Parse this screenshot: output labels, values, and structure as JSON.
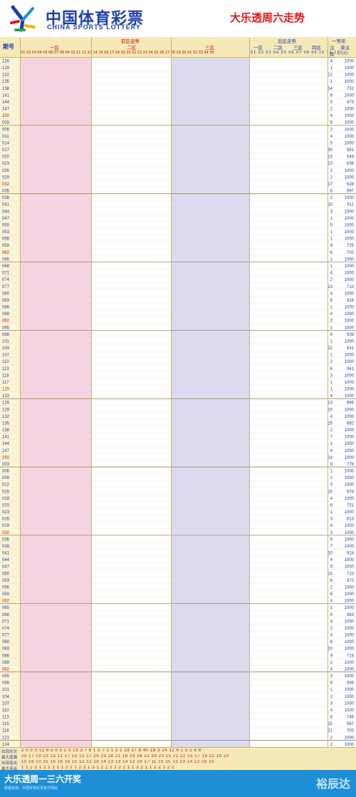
{
  "brand": {
    "cn": "中国体育彩票",
    "en": "CHINA SPORTS LOTTERY",
    "logo_icon": "china-sports-lottery-logo"
  },
  "title": "大乐透周六走势",
  "header": {
    "period_label": "期号",
    "front_zone": "前区走势",
    "back_zone": "后区走势",
    "first_prize": "一等奖",
    "front_sub": [
      "一区",
      "二区",
      "三区"
    ],
    "back_sub": [
      "一区",
      "二区",
      "三区",
      "四区"
    ],
    "notes_label": "注",
    "notes_label2": "数",
    "unit_label": "单注",
    "unit_label2": "(万元)",
    "front_numbers": "01 02 03 04 05 06 07 08 09 10 11 12 13 14 15 16 17 18 19 20 21 22 23 24 25 26 27 28 29 30 31 32 33 34 35",
    "back_numbers": "01 02 03 04 05 06 07 08 09 10 11 12"
  },
  "draws": [
    {
      "period": "126",
      "notes": "4",
      "prize": "1000"
    },
    {
      "period": "129",
      "notes": "1",
      "prize": "1000"
    },
    {
      "period": "132",
      "notes": "12",
      "prize": "1000"
    },
    {
      "period": "135",
      "notes": "1",
      "prize": "1000"
    },
    {
      "period": "138",
      "notes": "14",
      "prize": "732"
    },
    {
      "period": "141",
      "notes": "8",
      "prize": "1000"
    },
    {
      "period": "144",
      "notes": "5",
      "prize": "973"
    },
    {
      "period": "147",
      "notes": "2",
      "prize": "1000"
    },
    {
      "period": "150",
      "notes": "4",
      "prize": "1000"
    },
    {
      "period": "003",
      "notes": "6",
      "prize": "1000"
    },
    {
      "period": "005",
      "notes": "2",
      "prize": "1000"
    },
    {
      "period": "011",
      "notes": "4",
      "prize": "1000"
    },
    {
      "period": "014",
      "notes": "5",
      "prize": "1000"
    },
    {
      "period": "017",
      "notes": "30",
      "prize": "581"
    },
    {
      "period": "020",
      "notes": "13",
      "prize": "549"
    },
    {
      "period": "023",
      "notes": "13",
      "prize": "636"
    },
    {
      "period": "026",
      "notes": "1",
      "prize": "1000"
    },
    {
      "period": "029",
      "notes": "2",
      "prize": "1000"
    },
    {
      "period": "032",
      "notes": "17",
      "prize": "628"
    },
    {
      "period": "035",
      "notes": "6",
      "prize": "997"
    },
    {
      "period": "038",
      "notes": "2",
      "prize": "1000"
    },
    {
      "period": "041",
      "notes": "10",
      "prize": "911"
    },
    {
      "period": "044",
      "notes": "3",
      "prize": "1000"
    },
    {
      "period": "047",
      "notes": "1",
      "prize": "1000"
    },
    {
      "period": "050",
      "notes": "5",
      "prize": "1000"
    },
    {
      "period": "053",
      "notes": "1",
      "prize": "1000"
    },
    {
      "period": "056",
      "notes": "1",
      "prize": "1000"
    },
    {
      "period": "059",
      "notes": "9",
      "prize": "725"
    },
    {
      "period": "062",
      "notes": "6",
      "prize": "702"
    },
    {
      "period": "065",
      "notes": "1",
      "prize": "1000"
    },
    {
      "period": "068",
      "notes": "1",
      "prize": "1000"
    },
    {
      "period": "071",
      "notes": "4",
      "prize": "1000"
    },
    {
      "period": "074",
      "notes": "2",
      "prize": "1000"
    },
    {
      "period": "077",
      "notes": "13",
      "prize": "710"
    },
    {
      "period": "080",
      "notes": "4",
      "prize": "1000"
    },
    {
      "period": "083",
      "notes": "8",
      "prize": "816"
    },
    {
      "period": "086",
      "notes": "1",
      "prize": "1000"
    },
    {
      "period": "089",
      "notes": "4",
      "prize": "1000"
    },
    {
      "period": "092",
      "notes": "2",
      "prize": "1000"
    },
    {
      "period": "095",
      "notes": "1",
      "prize": "1000"
    },
    {
      "period": "098",
      "notes": "6",
      "prize": "939"
    },
    {
      "period": "101",
      "notes": "1",
      "prize": "1000"
    },
    {
      "period": "104",
      "notes": "22",
      "prize": "631"
    },
    {
      "period": "107",
      "notes": "1",
      "prize": "1000"
    },
    {
      "period": "110",
      "notes": "2",
      "prize": "1000"
    },
    {
      "period": "113",
      "notes": "6",
      "prize": "941"
    },
    {
      "period": "116",
      "notes": "3",
      "prize": "1000"
    },
    {
      "period": "117",
      "notes": "1",
      "prize": "1000"
    },
    {
      "period": "120",
      "notes": "1",
      "prize": "1000"
    },
    {
      "period": "123",
      "notes": "4",
      "prize": "1000"
    },
    {
      "period": "126",
      "notes": "13",
      "prize": "866"
    },
    {
      "period": "129",
      "notes": "10",
      "prize": "1000"
    },
    {
      "period": "132",
      "notes": "4",
      "prize": "1000"
    },
    {
      "period": "135",
      "notes": "15",
      "prize": "692"
    },
    {
      "period": "138",
      "notes": "2",
      "prize": "1000"
    },
    {
      "period": "141",
      "notes": "7",
      "prize": "1000"
    },
    {
      "period": "144",
      "notes": "1",
      "prize": "1000"
    },
    {
      "period": "147",
      "notes": "4",
      "prize": "1000"
    },
    {
      "period": "150",
      "notes": "14",
      "prize": "1000"
    },
    {
      "period": "003",
      "notes": "9",
      "prize": "776"
    },
    {
      "period": "006",
      "notes": "1",
      "prize": "1000"
    },
    {
      "period": "009",
      "notes": "2",
      "prize": "1000"
    },
    {
      "period": "012",
      "notes": "0",
      "prize": "1000"
    },
    {
      "period": "015",
      "notes": "15",
      "prize": "678"
    },
    {
      "period": "018",
      "notes": "4",
      "prize": "1000"
    },
    {
      "period": "020",
      "notes": "6",
      "prize": "731"
    },
    {
      "period": "023",
      "notes": "1",
      "prize": "1000"
    },
    {
      "period": "026",
      "notes": "3",
      "prize": "813"
    },
    {
      "period": "029",
      "notes": "4",
      "prize": "1000"
    },
    {
      "period": "032",
      "notes": "3",
      "prize": "1000"
    },
    {
      "period": "035",
      "notes": "5",
      "prize": "1000"
    },
    {
      "period": "038",
      "notes": "7",
      "prize": "1000"
    },
    {
      "period": "041",
      "notes": "10",
      "prize": "914"
    },
    {
      "period": "044",
      "notes": "4",
      "prize": "1000"
    },
    {
      "period": "047",
      "notes": "5",
      "prize": "1000"
    },
    {
      "period": "050",
      "notes": "14",
      "prize": "710"
    },
    {
      "period": "053",
      "notes": "6",
      "prize": "972"
    },
    {
      "period": "056",
      "notes": "2",
      "prize": "1000"
    },
    {
      "period": "059",
      "notes": "6",
      "prize": "1000"
    },
    {
      "period": "062",
      "notes": "4",
      "prize": "1000"
    },
    {
      "period": "065",
      "notes": "1",
      "prize": "1000"
    },
    {
      "period": "068",
      "notes": "8",
      "prize": "863"
    },
    {
      "period": "071",
      "notes": "4",
      "prize": "1000"
    },
    {
      "period": "074",
      "notes": "2",
      "prize": "1000"
    },
    {
      "period": "077",
      "notes": "4",
      "prize": "1000"
    },
    {
      "period": "080",
      "notes": "8",
      "prize": "1000"
    },
    {
      "period": "083",
      "notes": "10",
      "prize": "1000"
    },
    {
      "period": "086",
      "notes": "9",
      "prize": "716"
    },
    {
      "period": "089",
      "notes": "2",
      "prize": "1000"
    },
    {
      "period": "092",
      "notes": "4",
      "prize": "1000"
    },
    {
      "period": "095",
      "notes": "3",
      "prize": "1000"
    },
    {
      "period": "098",
      "notes": "6",
      "prize": "938"
    },
    {
      "period": "101",
      "notes": "1",
      "prize": "1000"
    },
    {
      "period": "104",
      "notes": "2",
      "prize": "1000"
    },
    {
      "period": "107",
      "notes": "3",
      "prize": "1000"
    },
    {
      "period": "110",
      "notes": "4",
      "prize": "1000"
    },
    {
      "period": "113",
      "notes": "8",
      "prize": "746"
    },
    {
      "period": "115",
      "notes": "15",
      "prize": "667"
    },
    {
      "period": "118",
      "notes": "21",
      "prize": "703"
    },
    {
      "period": "121",
      "notes": "2",
      "prize": "1000"
    },
    {
      "period": "124",
      "notes": "2",
      "prize": "1000"
    }
  ],
  "stats": [
    {
      "label": "出现总次",
      "values": "2 0 0 3 12 6 5 0 5 2 0 13 3 7 6 1 2 7 1 1 2 1 19 17 8 40 18 3 14 12 6 1 5 1 6 8"
    },
    {
      "label": "最大遗漏",
      "values": "25 17 19 23 13 12 17 15 15 17 26 23 28 21 16 29 26 21 39 20 25 21 22 15 17 19 22 19 20"
    },
    {
      "label": "出现连出",
      "values": "10 16 10 15 16 16 16 15 12 12 18 14 13 13 14 12 16 17 11 15 15 15 13 14 12 16 15"
    },
    {
      "label": "最大连出",
      "values": "1 1 2 2 1 2 2 2 1 1 2 2 1 2 2 1 3 1 2 2 2 1 2 2 1 1 3 2 1 1 2 2 1 2 2"
    }
  ],
  "footer": {
    "title": "大乐透周一三六开奖",
    "sub": "数据来源：中国体育彩票官方网站",
    "watermark": "裕辰达"
  },
  "colors": {
    "accent": "#1f3fa6",
    "red": "#e01818",
    "zone_pink": "#f2c6d8",
    "zone_lilac": "#cfcdea",
    "footer": "#1e8fd6"
  }
}
